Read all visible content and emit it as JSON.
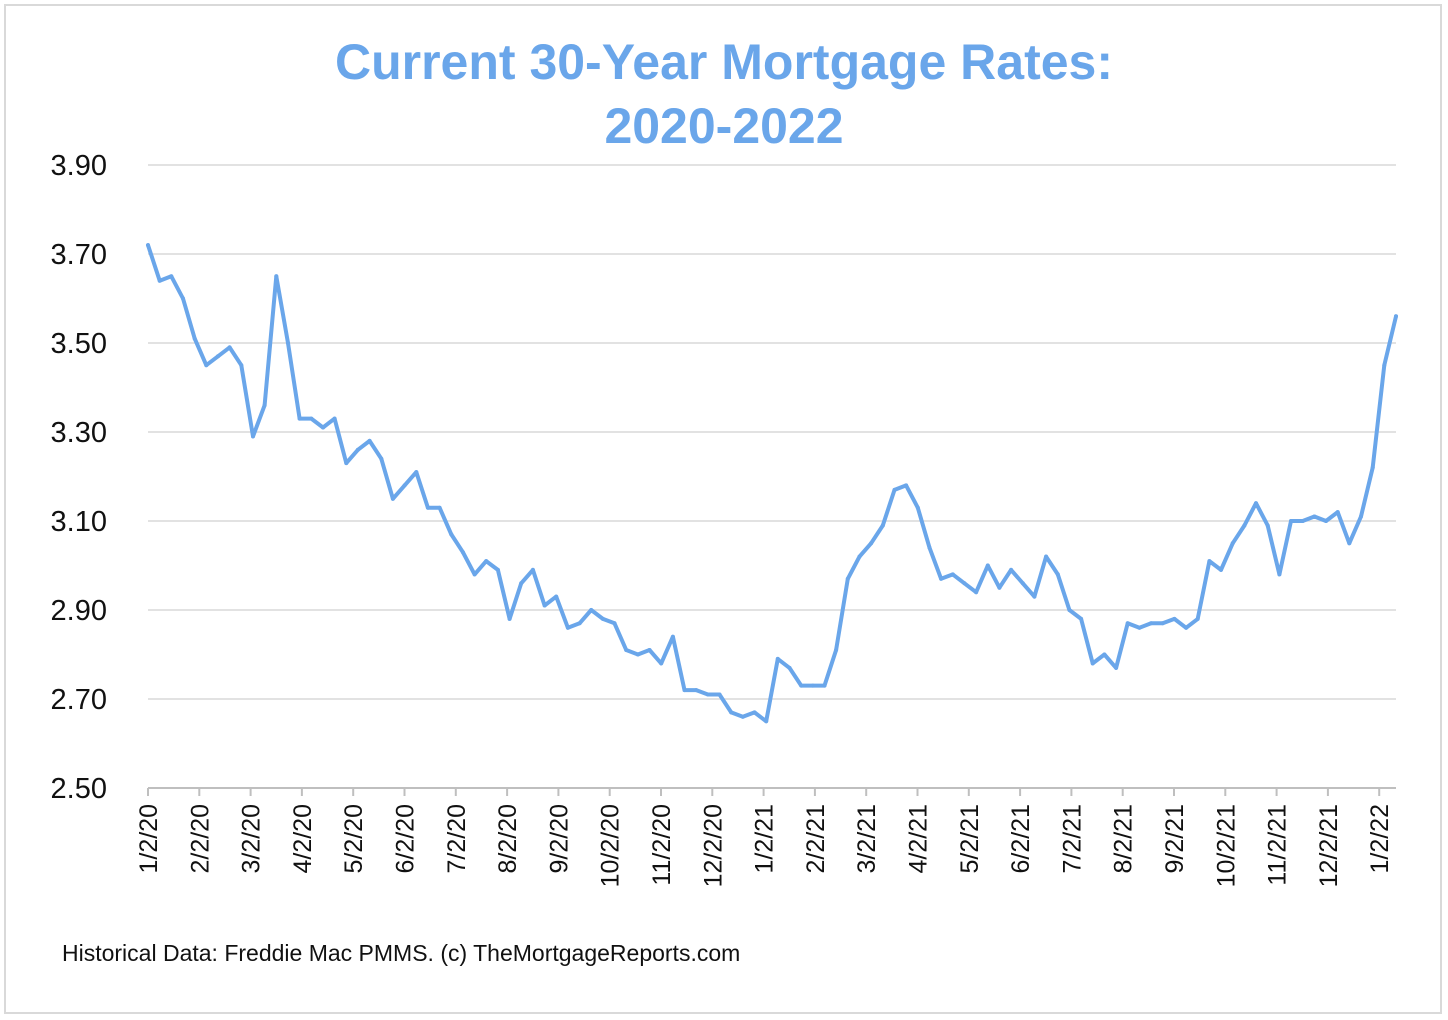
{
  "chart_data": {
    "type": "line",
    "title_line1": "Current 30-Year Mortgage Rates:",
    "title_line2": "2020-2022",
    "footer": "Historical Data: Freddie Mac PMMS. (c) TheMortgageReports.com",
    "ylim": [
      2.5,
      3.9
    ],
    "yticks": [
      "2.50",
      "2.70",
      "2.90",
      "3.10",
      "3.30",
      "3.50",
      "3.70",
      "3.90"
    ],
    "xtick_labels": [
      "1/2/20",
      "2/2/20",
      "3/2/20",
      "4/2/20",
      "5/2/20",
      "6/2/20",
      "7/2/20",
      "8/2/20",
      "9/2/20",
      "10/2/20",
      "11/2/20",
      "12/2/20",
      "1/2/21",
      "2/2/21",
      "3/2/21",
      "4/2/21",
      "5/2/21",
      "6/2/21",
      "7/2/21",
      "8/2/21",
      "9/2/21",
      "10/2/21",
      "11/2/21",
      "12/2/21",
      "1/2/22"
    ],
    "grid": true,
    "line_color": "#6aa6ea",
    "title_color": "#6aa6ea",
    "series": [
      {
        "values": [
          3.72,
          3.64,
          3.65,
          3.6,
          3.51,
          3.45,
          3.47,
          3.49,
          3.45,
          3.29,
          3.36,
          3.65,
          3.5,
          3.33,
          3.33,
          3.31,
          3.33,
          3.23,
          3.26,
          3.28,
          3.24,
          3.15,
          3.18,
          3.21,
          3.13,
          3.13,
          3.07,
          3.03,
          2.98,
          3.01,
          2.99,
          2.88,
          2.96,
          2.99,
          2.91,
          2.93,
          2.86,
          2.87,
          2.9,
          2.88,
          2.87,
          2.81,
          2.8,
          2.81,
          2.78,
          2.84,
          2.72,
          2.72,
          2.71,
          2.71,
          2.67,
          2.66,
          2.67,
          2.65,
          2.79,
          2.77,
          2.73,
          2.73,
          2.73,
          2.81,
          2.97,
          3.02,
          3.05,
          3.09,
          3.17,
          3.18,
          3.13,
          3.04,
          2.97,
          2.98,
          2.96,
          2.94,
          3.0,
          2.95,
          2.99,
          2.96,
          2.93,
          3.02,
          2.98,
          2.9,
          2.88,
          2.78,
          2.8,
          2.77,
          2.87,
          2.86,
          2.87,
          2.87,
          2.88,
          2.86,
          2.88,
          3.01,
          2.99,
          3.05,
          3.09,
          3.14,
          3.09,
          2.98,
          3.1,
          3.1,
          3.11,
          3.1,
          3.12,
          3.05,
          3.11,
          3.22,
          3.45,
          3.56
        ]
      }
    ]
  }
}
